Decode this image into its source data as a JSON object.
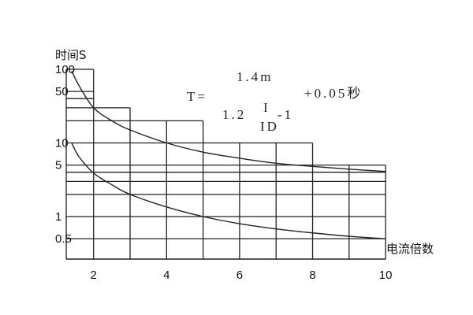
{
  "chart_data": {
    "type": "line",
    "title": "",
    "xlabel": "电流倍数",
    "ylabel": "时间S",
    "x_scale": "linear",
    "y_scale": "log",
    "xlim": [
      1.25,
      10
    ],
    "ylim": [
      0.26,
      100
    ],
    "grid": true,
    "x_ticks": [
      2,
      4,
      6,
      8,
      10
    ],
    "x_tick_labels": [
      "2",
      "4",
      "6",
      "8",
      "10"
    ],
    "y_ticks": [
      100,
      50,
      10,
      5,
      1,
      0.5
    ],
    "y_tick_labels": [
      "100",
      "50",
      "10",
      "5",
      "1",
      "0.5"
    ],
    "grid_vertical": [
      {
        "x": 1.25,
        "top": 100
      },
      {
        "x": 2,
        "top": 100
      },
      {
        "x": 3,
        "top": 30
      },
      {
        "x": 4,
        "top": 20
      },
      {
        "x": 5,
        "top": 20
      },
      {
        "x": 6,
        "top": 10
      },
      {
        "x": 7,
        "top": 10
      },
      {
        "x": 8,
        "top": 10
      },
      {
        "x": 9,
        "top": 5
      },
      {
        "x": 10,
        "top": 5
      }
    ],
    "grid_horizontal": [
      {
        "y": 100,
        "right": 2
      },
      {
        "y": 50,
        "right": 2
      },
      {
        "y": 40,
        "right": 2
      },
      {
        "y": 30,
        "right": 3
      },
      {
        "y": 20,
        "right": 5
      },
      {
        "y": 10,
        "right": 8
      },
      {
        "y": 5,
        "right": 10
      },
      {
        "y": 4,
        "right": 10
      },
      {
        "y": 3,
        "right": 10
      },
      {
        "y": 2,
        "right": 10
      },
      {
        "y": 1,
        "right": 10
      },
      {
        "y": 0.5,
        "right": 10
      }
    ],
    "series": [
      {
        "points": [
          [
            1.4,
            95
          ],
          [
            1.6,
            60
          ],
          [
            2,
            30
          ],
          [
            2.5,
            20
          ],
          [
            3,
            15
          ],
          [
            4,
            10
          ],
          [
            5,
            7.5
          ],
          [
            6,
            6.2
          ],
          [
            7,
            5.3
          ],
          [
            8,
            4.8
          ],
          [
            9,
            4.4
          ],
          [
            10,
            4.1
          ]
        ]
      },
      {
        "points": [
          [
            1.4,
            10
          ],
          [
            1.6,
            6.5
          ],
          [
            2,
            3.9
          ],
          [
            2.5,
            2.7
          ],
          [
            3,
            2.0
          ],
          [
            4,
            1.35
          ],
          [
            5,
            1.0
          ],
          [
            6,
            0.8
          ],
          [
            7,
            0.68
          ],
          [
            8,
            0.6
          ],
          [
            9,
            0.54
          ],
          [
            10,
            0.5
          ]
        ]
      }
    ],
    "annotation": {
      "lhs": "T=",
      "numerator": "1.4m",
      "coef": "1.2",
      "frac_top": "I",
      "frac_bottom": "ID",
      "minus_one": "-1",
      "addend": "+0.05秒"
    },
    "line_color": "#222222"
  }
}
